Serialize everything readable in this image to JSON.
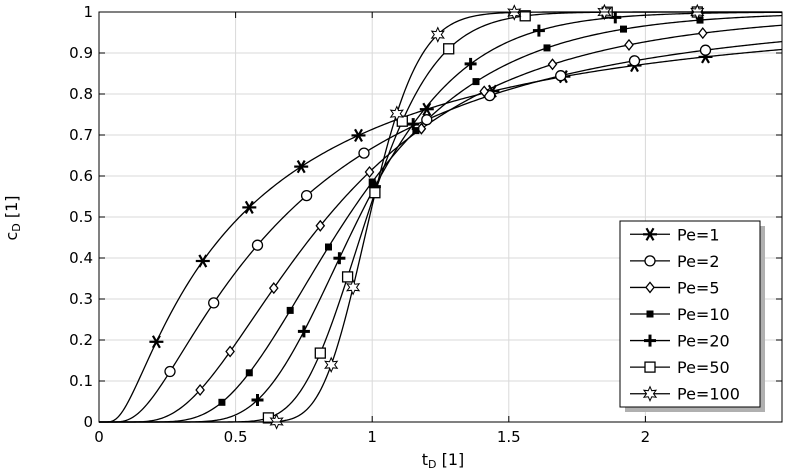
{
  "chart_data": {
    "type": "line",
    "title": "",
    "xlabel": "t",
    "xlabel_sub": "D",
    "xlabel_unit": " [1]",
    "ylabel": "c",
    "ylabel_sub": "D",
    "ylabel_unit": " [1]",
    "xlim": [
      0,
      2.5
    ],
    "ylim": [
      0,
      1
    ],
    "x_ticks": [
      0,
      0.5,
      1,
      1.5,
      2
    ],
    "x_tick_labels": [
      "0",
      "0.5",
      "1",
      "1.5",
      "2"
    ],
    "y_ticks": [
      0,
      0.1,
      0.2,
      0.3,
      0.4,
      0.5,
      0.6,
      0.7,
      0.8,
      0.9,
      1
    ],
    "y_tick_labels": [
      "0",
      "0.1",
      "0.2",
      "0.3",
      "0.4",
      "0.5",
      "0.6",
      "0.7",
      "0.8",
      "0.9",
      "1"
    ],
    "grid": true,
    "legend_position": "bottom-right",
    "colors": {
      "line": "#000000",
      "grid": "#d9d9d9",
      "background": "#ffffff"
    },
    "series": [
      {
        "name": "Pe=1",
        "Pe": 1,
        "marker": "asterisk",
        "marker_x": [
          0.21,
          0.38,
          0.55,
          0.74,
          0.95,
          1.2,
          1.44,
          1.7,
          1.96,
          2.22
        ]
      },
      {
        "name": "Pe=2",
        "Pe": 2,
        "marker": "circle",
        "marker_x": [
          0.26,
          0.42,
          0.58,
          0.76,
          0.97,
          1.2,
          1.43,
          1.69,
          1.96,
          2.22
        ]
      },
      {
        "name": "Pe=5",
        "Pe": 5,
        "marker": "diamond",
        "marker_x": [
          0.37,
          0.48,
          0.64,
          0.81,
          0.99,
          1.18,
          1.41,
          1.66,
          1.94,
          2.21
        ]
      },
      {
        "name": "Pe=10",
        "Pe": 10,
        "marker": "filled-square",
        "marker_x": [
          0.45,
          0.55,
          0.7,
          0.84,
          1.0,
          1.16,
          1.38,
          1.64,
          1.92,
          2.2
        ]
      },
      {
        "name": "Pe=20",
        "Pe": 20,
        "marker": "plus",
        "marker_x": [
          0.58,
          0.75,
          0.88,
          1.01,
          1.15,
          1.36,
          1.61,
          1.89,
          2.19
        ]
      },
      {
        "name": "Pe=50",
        "Pe": 50,
        "marker": "open-square",
        "marker_x": [
          0.62,
          0.81,
          0.91,
          1.01,
          1.11,
          1.28,
          1.56,
          1.86,
          2.19
        ]
      },
      {
        "name": "Pe=100",
        "Pe": 100,
        "marker": "star",
        "marker_x": [
          0.65,
          0.85,
          0.93,
          1.09,
          1.24,
          1.52,
          1.85,
          2.19
        ]
      }
    ]
  }
}
